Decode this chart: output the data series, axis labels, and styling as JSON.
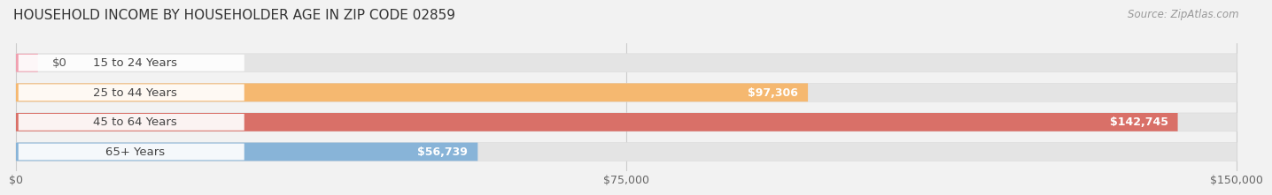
{
  "title": "HOUSEHOLD INCOME BY HOUSEHOLDER AGE IN ZIP CODE 02859",
  "source": "Source: ZipAtlas.com",
  "categories": [
    "15 to 24 Years",
    "25 to 44 Years",
    "45 to 64 Years",
    "65+ Years"
  ],
  "values": [
    0,
    97306,
    142745,
    56739
  ],
  "bar_colors": [
    "#f0a0b0",
    "#f5b870",
    "#d97068",
    "#88b4d8"
  ],
  "value_labels": [
    "$0",
    "$97,306",
    "$142,745",
    "$56,739"
  ],
  "xlim": [
    0,
    150000
  ],
  "xticks": [
    0,
    75000,
    150000
  ],
  "xtick_labels": [
    "$0",
    "$75,000",
    "$150,000"
  ],
  "background_color": "#f2f2f2",
  "bar_background_color": "#e4e4e4",
  "label_bg_color": "#ffffff",
  "title_fontsize": 11,
  "source_fontsize": 8.5,
  "label_fontsize": 9.5,
  "tick_fontsize": 9,
  "bar_height": 0.62,
  "bar_gap": 1.0
}
